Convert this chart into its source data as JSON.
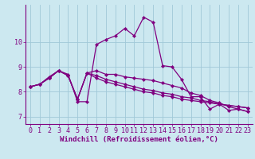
{
  "xlabel": "Windchill (Refroidissement éolien,°C)",
  "background_color": "#cce8f0",
  "line_color": "#800080",
  "grid_color": "#a0c8d8",
  "xlim": [
    -0.5,
    23.5
  ],
  "ylim": [
    6.7,
    11.5
  ],
  "xticks": [
    0,
    1,
    2,
    3,
    4,
    5,
    6,
    7,
    8,
    9,
    10,
    11,
    12,
    13,
    14,
    15,
    16,
    17,
    18,
    19,
    20,
    21,
    22,
    23
  ],
  "yticks": [
    7,
    8,
    9,
    10
  ],
  "series": [
    [
      8.2,
      8.3,
      8.6,
      8.85,
      8.7,
      7.6,
      7.6,
      9.9,
      10.1,
      10.25,
      10.55,
      10.25,
      11.0,
      10.8,
      9.05,
      9.0,
      8.5,
      7.8,
      7.8,
      7.3,
      7.5,
      7.25,
      7.3,
      7.2
    ],
    [
      8.2,
      8.3,
      8.55,
      8.85,
      8.65,
      7.7,
      8.75,
      8.85,
      8.7,
      8.7,
      8.6,
      8.55,
      8.5,
      8.45,
      8.35,
      8.25,
      8.15,
      7.95,
      7.85,
      7.65,
      7.55,
      7.4,
      7.3,
      7.2
    ],
    [
      8.2,
      8.3,
      8.55,
      8.85,
      8.65,
      7.7,
      8.75,
      8.65,
      8.5,
      8.4,
      8.3,
      8.2,
      8.1,
      8.05,
      7.95,
      7.9,
      7.8,
      7.75,
      7.65,
      7.6,
      7.5,
      7.45,
      7.4,
      7.35
    ],
    [
      8.2,
      8.3,
      8.55,
      8.85,
      8.65,
      7.7,
      8.75,
      8.55,
      8.4,
      8.3,
      8.2,
      8.1,
      8.0,
      7.95,
      7.85,
      7.8,
      7.7,
      7.65,
      7.6,
      7.55,
      7.5,
      7.45,
      7.4,
      7.35
    ]
  ],
  "tick_fontsize": 6,
  "xlabel_fontsize": 6.5
}
